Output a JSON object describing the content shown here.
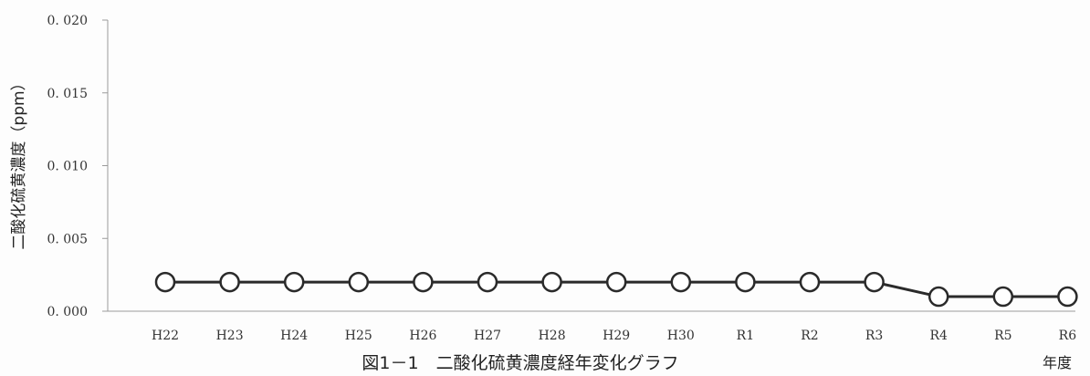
{
  "chart_data": {
    "type": "line",
    "title": "図1－1　二酸化硫黄濃度経年変化グラフ",
    "xlabel": "年度",
    "ylabel": "二酸化硫黄濃度（ppm）",
    "x": [
      "H22",
      "H23",
      "H24",
      "H25",
      "H26",
      "H27",
      "H28",
      "H29",
      "H30",
      "R1",
      "R2",
      "R3",
      "R4",
      "R5",
      "R6"
    ],
    "series": [
      {
        "values": [
          0.002,
          0.002,
          0.002,
          0.002,
          0.002,
          0.002,
          0.002,
          0.002,
          0.002,
          0.002,
          0.002,
          0.002,
          0.001,
          0.001,
          0.001
        ]
      }
    ],
    "ylim": [
      0,
      0.02
    ],
    "yticks": [
      "0. 000",
      "0. 005",
      "0. 010",
      "0. 015",
      "0. 020"
    ],
    "grid": false,
    "colors": {
      "line": "#2a2a2a",
      "marker_fill": "#ffffff",
      "marker_stroke": "#2a2a2a",
      "axis": "#9a9a9a"
    }
  }
}
